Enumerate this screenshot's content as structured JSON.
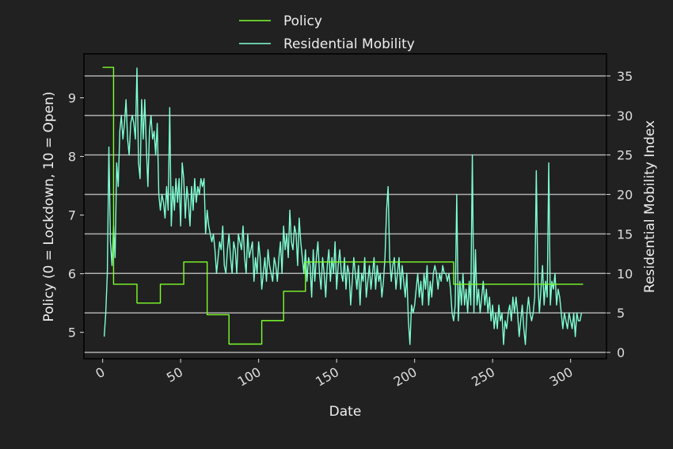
{
  "chart_data": {
    "type": "line",
    "xlabel": "Date",
    "ylabel_left": "Policy (0 = Lockdown, 10 = Open)",
    "ylabel_right": "Residential Mobility Index",
    "xlim": [
      -12,
      323
    ],
    "ylim_left": [
      4.55,
      9.75
    ],
    "ylim_right": [
      -0.8,
      37.8
    ],
    "x_ticks": [
      0,
      50,
      100,
      150,
      200,
      250,
      300
    ],
    "y_left_ticks": [
      5,
      6,
      7,
      8,
      9
    ],
    "y_right_ticks": [
      0,
      5,
      10,
      15,
      20,
      25,
      30,
      35
    ],
    "grid": "right-axis horizontal",
    "legend": {
      "placement": "top-center",
      "entries": [
        "Policy",
        "Residential Mobility"
      ]
    },
    "colors": {
      "policy": "#7dff2a",
      "mobility": "#7fffd4",
      "background": "#212121",
      "grid": "#b0b0b0",
      "axes": "#000000"
    },
    "series": [
      {
        "name": "Policy",
        "axis": "left",
        "step": true,
        "points": [
          [
            0,
            9.52
          ],
          [
            7,
            9.52
          ],
          [
            7,
            5.82
          ],
          [
            22,
            5.82
          ],
          [
            22,
            5.5
          ],
          [
            37,
            5.5
          ],
          [
            37,
            5.82
          ],
          [
            52,
            5.82
          ],
          [
            52,
            6.2
          ],
          [
            67,
            6.2
          ],
          [
            67,
            5.3
          ],
          [
            81,
            5.3
          ],
          [
            81,
            4.8
          ],
          [
            102,
            4.8
          ],
          [
            102,
            5.2
          ],
          [
            116,
            5.2
          ],
          [
            116,
            5.7
          ],
          [
            130,
            5.7
          ],
          [
            130,
            6.2
          ],
          [
            225,
            6.2
          ],
          [
            225,
            5.82
          ],
          [
            308,
            5.82
          ]
        ]
      },
      {
        "name": "Residential Mobility",
        "axis": "right",
        "points": [
          [
            1,
            2
          ],
          [
            2,
            5
          ],
          [
            3,
            10
          ],
          [
            4,
            26
          ],
          [
            5,
            14
          ],
          [
            6,
            11
          ],
          [
            7,
            16
          ],
          [
            8,
            12
          ],
          [
            9,
            24
          ],
          [
            10,
            21
          ],
          [
            11,
            28
          ],
          [
            12,
            30
          ],
          [
            13,
            27
          ],
          [
            14,
            29
          ],
          [
            15,
            32
          ],
          [
            16,
            27
          ],
          [
            17,
            25
          ],
          [
            18,
            29
          ],
          [
            19,
            30
          ],
          [
            20,
            29
          ],
          [
            21,
            27
          ],
          [
            22,
            36
          ],
          [
            23,
            24
          ],
          [
            24,
            22
          ],
          [
            25,
            32
          ],
          [
            26,
            27
          ],
          [
            27,
            32
          ],
          [
            28,
            26
          ],
          [
            29,
            21
          ],
          [
            30,
            28
          ],
          [
            31,
            30
          ],
          [
            32,
            27
          ],
          [
            33,
            28
          ],
          [
            34,
            25
          ],
          [
            35,
            29
          ],
          [
            36,
            20
          ],
          [
            37,
            18
          ],
          [
            38,
            20
          ],
          [
            39,
            19
          ],
          [
            40,
            17
          ],
          [
            41,
            21
          ],
          [
            42,
            18
          ],
          [
            43,
            31
          ],
          [
            44,
            16
          ],
          [
            45,
            21
          ],
          [
            46,
            18
          ],
          [
            47,
            22
          ],
          [
            48,
            19
          ],
          [
            49,
            22
          ],
          [
            50,
            16
          ],
          [
            51,
            24
          ],
          [
            52,
            22
          ],
          [
            53,
            17
          ],
          [
            54,
            21
          ],
          [
            55,
            19
          ],
          [
            56,
            16
          ],
          [
            57,
            21
          ],
          [
            58,
            18
          ],
          [
            59,
            22
          ],
          [
            60,
            19
          ],
          [
            61,
            21
          ],
          [
            62,
            20
          ],
          [
            63,
            22
          ],
          [
            64,
            21
          ],
          [
            65,
            22
          ],
          [
            66,
            15
          ],
          [
            67,
            18
          ],
          [
            68,
            16
          ],
          [
            69,
            15
          ],
          [
            70,
            14
          ],
          [
            71,
            15
          ],
          [
            72,
            13
          ],
          [
            73,
            10
          ],
          [
            74,
            12
          ],
          [
            75,
            14
          ],
          [
            76,
            13
          ],
          [
            77,
            16
          ],
          [
            78,
            11
          ],
          [
            79,
            10
          ],
          [
            80,
            13
          ],
          [
            81,
            15
          ],
          [
            82,
            12
          ],
          [
            83,
            10
          ],
          [
            84,
            14
          ],
          [
            85,
            13
          ],
          [
            86,
            10
          ],
          [
            87,
            15
          ],
          [
            88,
            14
          ],
          [
            89,
            13
          ],
          [
            90,
            16
          ],
          [
            91,
            12
          ],
          [
            92,
            10
          ],
          [
            93,
            15
          ],
          [
            94,
            12
          ],
          [
            95,
            13
          ],
          [
            96,
            14
          ],
          [
            97,
            9
          ],
          [
            98,
            12
          ],
          [
            99,
            10
          ],
          [
            100,
            14
          ],
          [
            101,
            12
          ],
          [
            102,
            8
          ],
          [
            103,
            10
          ],
          [
            104,
            12
          ],
          [
            105,
            9
          ],
          [
            106,
            13
          ],
          [
            107,
            11
          ],
          [
            108,
            10
          ],
          [
            109,
            9
          ],
          [
            110,
            12
          ],
          [
            111,
            11
          ],
          [
            112,
            9
          ],
          [
            113,
            12
          ],
          [
            114,
            14
          ],
          [
            115,
            10
          ],
          [
            116,
            16
          ],
          [
            117,
            13
          ],
          [
            118,
            15
          ],
          [
            119,
            12
          ],
          [
            120,
            18
          ],
          [
            121,
            14
          ],
          [
            122,
            13
          ],
          [
            123,
            16
          ],
          [
            124,
            15
          ],
          [
            125,
            11
          ],
          [
            126,
            17
          ],
          [
            127,
            14
          ],
          [
            128,
            12
          ],
          [
            129,
            10
          ],
          [
            130,
            13
          ],
          [
            131,
            9
          ],
          [
            132,
            12
          ],
          [
            133,
            11
          ],
          [
            134,
            7
          ],
          [
            135,
            13
          ],
          [
            136,
            9
          ],
          [
            137,
            12
          ],
          [
            138,
            14
          ],
          [
            139,
            10
          ],
          [
            140,
            8
          ],
          [
            141,
            12
          ],
          [
            142,
            10
          ],
          [
            143,
            7
          ],
          [
            144,
            11
          ],
          [
            145,
            13
          ],
          [
            146,
            9
          ],
          [
            147,
            12
          ],
          [
            148,
            10
          ],
          [
            149,
            14
          ],
          [
            150,
            8
          ],
          [
            151,
            11
          ],
          [
            152,
            13
          ],
          [
            153,
            10
          ],
          [
            154,
            9
          ],
          [
            155,
            12
          ],
          [
            156,
            8
          ],
          [
            157,
            11
          ],
          [
            158,
            10
          ],
          [
            159,
            6
          ],
          [
            160,
            9
          ],
          [
            161,
            12
          ],
          [
            162,
            10
          ],
          [
            163,
            8
          ],
          [
            164,
            11
          ],
          [
            165,
            6
          ],
          [
            166,
            10
          ],
          [
            167,
            9
          ],
          [
            168,
            12
          ],
          [
            169,
            7
          ],
          [
            170,
            9
          ],
          [
            171,
            11
          ],
          [
            172,
            8
          ],
          [
            173,
            10
          ],
          [
            174,
            12
          ],
          [
            175,
            8
          ],
          [
            176,
            11
          ],
          [
            177,
            9
          ],
          [
            178,
            10
          ],
          [
            179,
            7
          ],
          [
            180,
            9
          ],
          [
            181,
            12
          ],
          [
            182,
            18
          ],
          [
            183,
            21
          ],
          [
            184,
            12
          ],
          [
            185,
            9
          ],
          [
            186,
            11
          ],
          [
            187,
            12
          ],
          [
            188,
            8
          ],
          [
            189,
            10
          ],
          [
            190,
            12
          ],
          [
            191,
            8
          ],
          [
            192,
            11
          ],
          [
            193,
            9
          ],
          [
            194,
            7
          ],
          [
            195,
            10
          ],
          [
            196,
            4
          ],
          [
            197,
            1
          ],
          [
            198,
            6
          ],
          [
            199,
            5
          ],
          [
            200,
            6
          ],
          [
            201,
            8
          ],
          [
            202,
            10
          ],
          [
            203,
            7
          ],
          [
            204,
            9
          ],
          [
            205,
            6
          ],
          [
            206,
            10
          ],
          [
            207,
            8
          ],
          [
            208,
            11
          ],
          [
            209,
            6
          ],
          [
            210,
            9
          ],
          [
            211,
            7
          ],
          [
            212,
            10
          ],
          [
            213,
            11
          ],
          [
            214,
            10
          ],
          [
            215,
            8
          ],
          [
            216,
            10
          ],
          [
            217,
            9
          ],
          [
            218,
            11
          ],
          [
            219,
            10
          ],
          [
            220,
            10
          ],
          [
            221,
            9
          ],
          [
            222,
            10
          ],
          [
            223,
            8
          ],
          [
            224,
            5
          ],
          [
            225,
            4
          ],
          [
            226,
            6
          ],
          [
            227,
            20
          ],
          [
            228,
            4
          ],
          [
            229,
            9
          ],
          [
            230,
            6
          ],
          [
            231,
            10
          ],
          [
            232,
            6
          ],
          [
            233,
            8
          ],
          [
            234,
            5
          ],
          [
            235,
            9
          ],
          [
            236,
            6
          ],
          [
            237,
            25
          ],
          [
            238,
            5
          ],
          [
            239,
            13
          ],
          [
            240,
            6
          ],
          [
            241,
            8
          ],
          [
            242,
            5
          ],
          [
            243,
            7
          ],
          [
            244,
            9
          ],
          [
            245,
            6
          ],
          [
            246,
            8
          ],
          [
            247,
            5
          ],
          [
            248,
            7
          ],
          [
            249,
            4
          ],
          [
            250,
            6
          ],
          [
            251,
            3
          ],
          [
            252,
            5
          ],
          [
            253,
            3
          ],
          [
            254,
            6
          ],
          [
            255,
            4
          ],
          [
            256,
            5
          ],
          [
            257,
            1
          ],
          [
            258,
            4
          ],
          [
            259,
            3
          ],
          [
            260,
            5
          ],
          [
            261,
            6
          ],
          [
            262,
            4
          ],
          [
            263,
            7
          ],
          [
            264,
            5
          ],
          [
            265,
            7
          ],
          [
            266,
            5
          ],
          [
            267,
            2
          ],
          [
            268,
            4
          ],
          [
            269,
            6
          ],
          [
            270,
            3
          ],
          [
            271,
            1
          ],
          [
            272,
            5
          ],
          [
            273,
            7
          ],
          [
            274,
            5
          ],
          [
            275,
            4
          ],
          [
            276,
            5
          ],
          [
            277,
            7
          ],
          [
            278,
            23
          ],
          [
            279,
            9
          ],
          [
            280,
            5
          ],
          [
            281,
            8
          ],
          [
            282,
            11
          ],
          [
            283,
            6
          ],
          [
            284,
            9
          ],
          [
            285,
            7
          ],
          [
            286,
            24
          ],
          [
            287,
            6
          ],
          [
            288,
            9
          ],
          [
            289,
            8
          ],
          [
            290,
            10
          ],
          [
            291,
            6
          ],
          [
            292,
            8
          ],
          [
            293,
            7
          ],
          [
            294,
            5
          ],
          [
            295,
            3
          ],
          [
            296,
            5
          ],
          [
            297,
            4
          ],
          [
            298,
            3
          ],
          [
            299,
            5
          ],
          [
            300,
            4
          ],
          [
            301,
            3
          ],
          [
            302,
            5
          ],
          [
            303,
            2
          ],
          [
            304,
            5
          ],
          [
            305,
            4
          ],
          [
            306,
            4
          ],
          [
            307,
            5
          ]
        ]
      }
    ]
  }
}
